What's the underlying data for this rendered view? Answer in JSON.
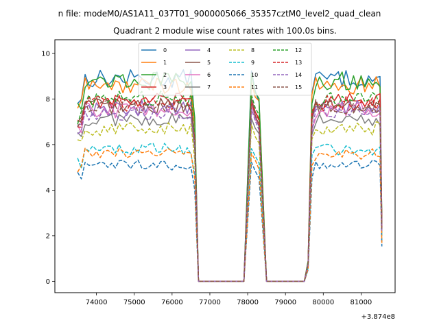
{
  "figure": {
    "suptitle": "n file: modeM0/AS1A11_037T01_9000005066_35357cztM0_level2_quad_clean"
  },
  "chart_data": {
    "type": "line",
    "title": "Quadrant 2 module wise count rates with 100.0s bins.",
    "xlabel": "",
    "ylabel": "",
    "x_offset_label": "+3.874e8",
    "xlim": [
      72900,
      81900
    ],
    "ylim": [
      -0.5,
      10.6
    ],
    "x_ticks": [
      74000,
      75000,
      76000,
      77000,
      78000,
      79000,
      80000,
      81000
    ],
    "x_tick_labels": [
      "74000",
      "75000",
      "76000",
      "77000",
      "78000",
      "79000",
      "80000",
      "81000"
    ],
    "y_ticks": [
      0,
      2,
      4,
      6,
      8,
      10
    ],
    "y_tick_labels": [
      "0",
      "2",
      "4",
      "6",
      "8",
      "10"
    ],
    "grid": false,
    "legend": {
      "placement": "top-center",
      "columns": 4
    },
    "segments": [
      {
        "start": 73500,
        "end": 76500
      },
      {
        "start": 78100,
        "end": 78300
      },
      {
        "start": 79700,
        "end": 81500
      }
    ],
    "zero_plateaus": [
      {
        "start": 76700,
        "end": 77900
      },
      {
        "start": 78500,
        "end": 79500
      }
    ],
    "series": [
      {
        "name": "0",
        "color": "#1f77b4",
        "dash": "solid",
        "level": 8.9
      },
      {
        "name": "1",
        "color": "#ff7f0e",
        "dash": "solid",
        "level": 8.6
      },
      {
        "name": "2",
        "color": "#2ca02c",
        "dash": "solid",
        "level": 8.8
      },
      {
        "name": "3",
        "color": "#d62728",
        "dash": "solid",
        "level": 7.9
      },
      {
        "name": "4",
        "color": "#9467bd",
        "dash": "solid",
        "level": 7.6
      },
      {
        "name": "5",
        "color": "#8c564b",
        "dash": "solid",
        "level": 7.7
      },
      {
        "name": "6",
        "color": "#e377c2",
        "dash": "solid",
        "level": 7.5
      },
      {
        "name": "7",
        "color": "#7f7f7f",
        "dash": "solid",
        "level": 7.1
      },
      {
        "name": "8",
        "color": "#bcbd22",
        "dash": "dashed",
        "level": 6.7
      },
      {
        "name": "9",
        "color": "#17becf",
        "dash": "dashed",
        "level": 5.8
      },
      {
        "name": "10",
        "color": "#1f77b4",
        "dash": "dashed",
        "level": 5.1
      },
      {
        "name": "11",
        "color": "#ff7f0e",
        "dash": "dashed",
        "level": 5.6
      },
      {
        "name": "12",
        "color": "#2ca02c",
        "dash": "dashed",
        "level": 8.0
      },
      {
        "name": "13",
        "color": "#d62728",
        "dash": "dashed",
        "level": 7.8
      },
      {
        "name": "14",
        "color": "#9467bd",
        "dash": "dashed",
        "level": 7.4
      },
      {
        "name": "15",
        "color": "#8c564b",
        "dash": "dashed",
        "level": 7.7
      }
    ]
  }
}
